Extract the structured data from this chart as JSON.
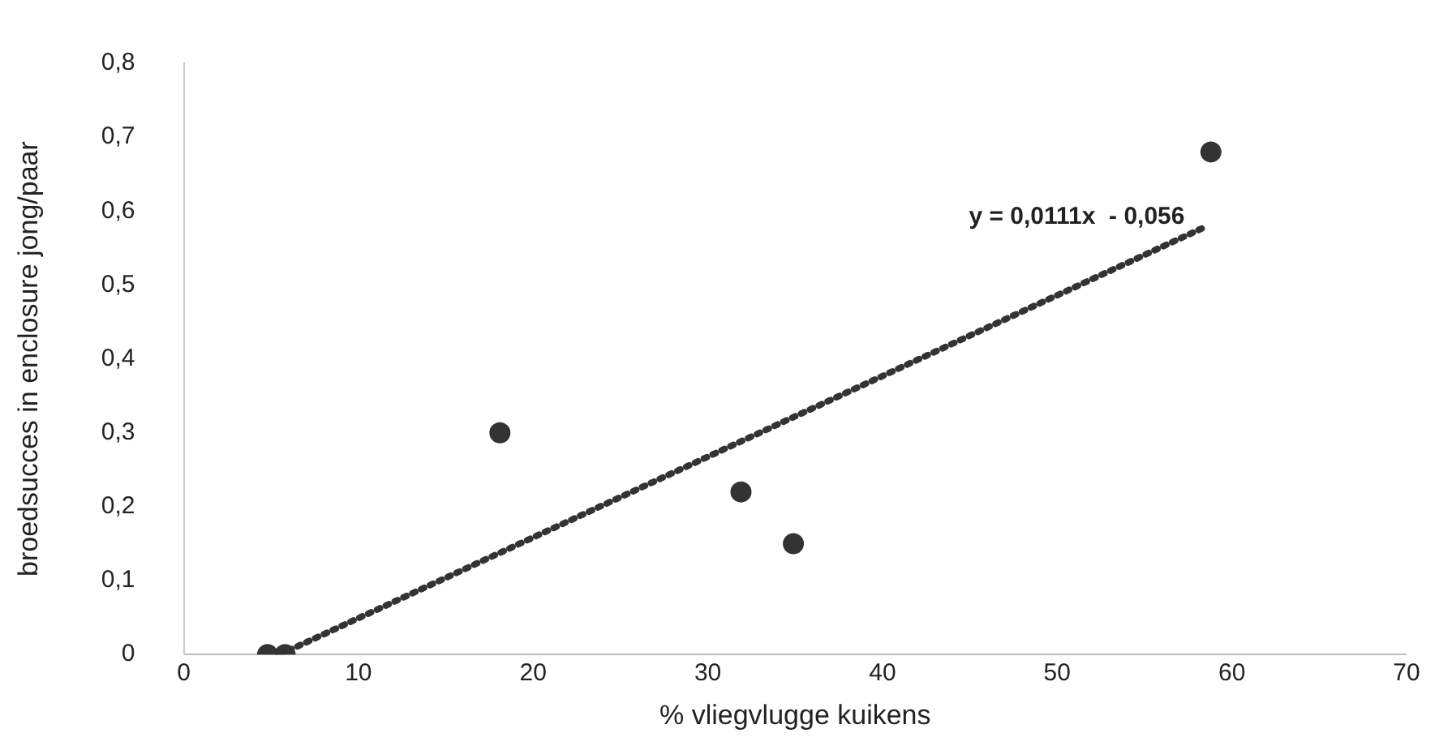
{
  "chart_data": {
    "type": "scatter",
    "xlabel": "% vliegvlugge kuikens",
    "ylabel": "broedsucces in enclosure jong/paar",
    "xlim": [
      0,
      70
    ],
    "xticks": [
      0,
      10,
      20,
      30,
      40,
      50,
      60,
      70
    ],
    "ylim": [
      0,
      0.8
    ],
    "yticks": [
      {
        "value": 0,
        "label": "0"
      },
      {
        "value": 0.1,
        "label": "0,1"
      },
      {
        "value": 0.2,
        "label": "0,2"
      },
      {
        "value": 0.3,
        "label": "0,3"
      },
      {
        "value": 0.4,
        "label": "0,4"
      },
      {
        "value": 0.5,
        "label": "0,5"
      },
      {
        "value": 0.6,
        "label": "0,6"
      },
      {
        "value": 0.7,
        "label": "0,7"
      },
      {
        "value": 0.8,
        "label": "0,8"
      }
    ],
    "grid": false,
    "legend": false,
    "marker": "circle",
    "series": [
      {
        "type": "scatter",
        "color": "#333333",
        "x": [
          4.8,
          5.8,
          18.1,
          31.9,
          34.9,
          58.8
        ],
        "values": [
          0,
          0,
          0.3,
          0.22,
          0.15,
          0.68
        ]
      },
      {
        "type": "line",
        "color": "#333333",
        "line_style": "dotted",
        "marker": "none",
        "x": [
          5.5,
          58.6
        ],
        "values": [
          0,
          0.58
        ]
      }
    ],
    "annotations": [
      {
        "text": "y = 0,0111x  - 0,056",
        "x": 58.6,
        "y": 0.58
      }
    ]
  }
}
